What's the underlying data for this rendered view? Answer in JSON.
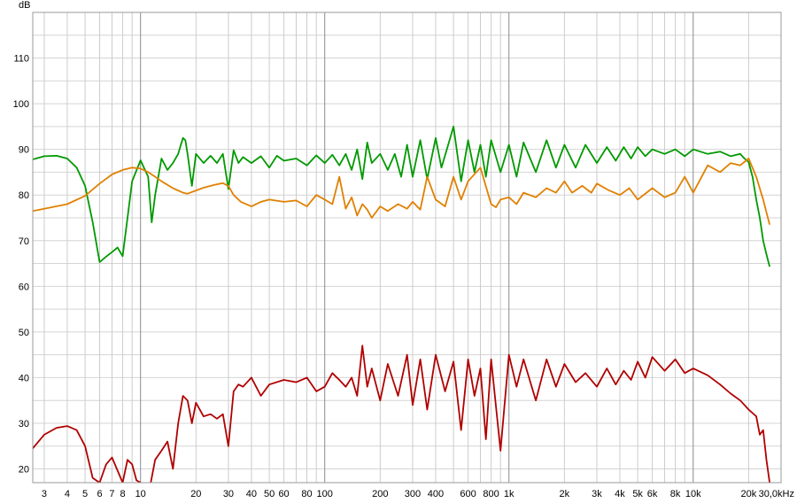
{
  "chart_data": {
    "type": "line",
    "title": "",
    "xlabel": "",
    "ylabel": "",
    "y_unit_label": "dB",
    "x_unit_label": "30,0kHz",
    "x_scale": "log",
    "xlim": [
      2.6,
      30000
    ],
    "ylim": [
      17,
      120
    ],
    "grid": true,
    "legend": "none",
    "y_ticks": [
      20,
      30,
      40,
      50,
      60,
      70,
      80,
      90,
      100,
      110
    ],
    "y_tick_labels": [
      "20",
      "30",
      "40",
      "50",
      "60",
      "70",
      "80",
      "90",
      "100",
      "110"
    ],
    "x_ticks": [
      3,
      4,
      5,
      6,
      7,
      8,
      10,
      20,
      30,
      40,
      50,
      60,
      80,
      100,
      200,
      300,
      400,
      600,
      800,
      1000,
      2000,
      3000,
      4000,
      5000,
      6000,
      8000,
      10000,
      20000
    ],
    "x_tick_labels": [
      "3",
      "4",
      "5",
      "6",
      "7",
      "8",
      "10",
      "20",
      "30",
      "40",
      "50",
      "60",
      "80",
      "100",
      "200",
      "300",
      "400",
      "600",
      "800",
      "1k",
      "2k",
      "3k",
      "4k",
      "5k",
      "6k",
      "8k",
      "10k",
      "20k"
    ],
    "series": [
      {
        "color": "#009900",
        "x": [
          2.6,
          3,
          3.5,
          4,
          4.5,
          5,
          5.5,
          6,
          6.5,
          7,
          7.5,
          8,
          8.5,
          9,
          10,
          11,
          11.5,
          12,
          13,
          14,
          15,
          16,
          17,
          17.5,
          18,
          19,
          20,
          22,
          24,
          26,
          28,
          30,
          32,
          34,
          36,
          40,
          45,
          50,
          55,
          60,
          70,
          80,
          90,
          100,
          110,
          120,
          130,
          140,
          150,
          160,
          170,
          180,
          200,
          220,
          240,
          260,
          280,
          300,
          330,
          360,
          400,
          430,
          460,
          500,
          550,
          600,
          650,
          700,
          750,
          800,
          900,
          1000,
          1100,
          1200,
          1400,
          1600,
          1800,
          2000,
          2300,
          2600,
          3000,
          3400,
          3800,
          4200,
          4600,
          5000,
          5500,
          6000,
          7000,
          8000,
          9000,
          10000,
          12000,
          14000,
          16000,
          18000,
          19000,
          20000,
          21000,
          22000,
          23000,
          24000,
          25000,
          26000
        ],
        "values": [
          87.8,
          88.5,
          88.6,
          88,
          86,
          82,
          74,
          65.3,
          66.5,
          67.5,
          68.5,
          66.6,
          75,
          83,
          87.6,
          84,
          74,
          80,
          88,
          85.5,
          87,
          89,
          92.5,
          92,
          89,
          82,
          89,
          87,
          88.6,
          87,
          89,
          81.3,
          89.8,
          87,
          88.3,
          87,
          88.5,
          86,
          88.6,
          87.5,
          88,
          86.5,
          88.7,
          87,
          88.8,
          86.5,
          89,
          85.5,
          90,
          83.5,
          91.5,
          87,
          89,
          85.5,
          89,
          84,
          91,
          84,
          92,
          83.5,
          92.5,
          86,
          90,
          95,
          83,
          92,
          85,
          91,
          84,
          92,
          85,
          91,
          84,
          91.5,
          85,
          92,
          86,
          91,
          86,
          91,
          87,
          90.5,
          87.5,
          90.5,
          88,
          90.5,
          88.5,
          90,
          89,
          90,
          88.5,
          90,
          89,
          89.5,
          88.5,
          89,
          88,
          87.2,
          84,
          79,
          75,
          70,
          67,
          64.3
        ]
      },
      {
        "color": "#e08000",
        "x": [
          2.6,
          3,
          4,
          5,
          6,
          7,
          8,
          9,
          10,
          11,
          12,
          13,
          15,
          17,
          18,
          20,
          22,
          25,
          28,
          30,
          32,
          35,
          40,
          45,
          50,
          60,
          70,
          80,
          90,
          100,
          110,
          120,
          130,
          140,
          150,
          160,
          170,
          180,
          200,
          220,
          250,
          280,
          300,
          330,
          360,
          400,
          450,
          500,
          550,
          600,
          700,
          800,
          850,
          900,
          1000,
          1100,
          1200,
          1400,
          1600,
          1800,
          2000,
          2200,
          2500,
          2800,
          3000,
          3500,
          4000,
          4500,
          5000,
          6000,
          7000,
          8000,
          9000,
          10000,
          12000,
          14000,
          16000,
          18000,
          20000,
          22000,
          24000,
          26000
        ],
        "values": [
          76.5,
          77,
          78,
          79.8,
          82.5,
          84.5,
          85.5,
          86,
          85.8,
          85,
          84,
          83,
          81.5,
          80.5,
          80.3,
          81,
          81.6,
          82.2,
          82.6,
          82,
          80,
          78.5,
          77.5,
          78.5,
          79,
          78.5,
          78.8,
          77.5,
          80,
          79,
          78,
          84,
          77,
          79.5,
          75.5,
          78,
          76.8,
          75,
          77.5,
          76.5,
          78,
          77,
          78.5,
          76.8,
          84,
          79,
          77.5,
          84,
          79,
          83,
          86,
          78,
          77.3,
          79,
          79.5,
          78,
          80.5,
          79.5,
          81.5,
          80.5,
          83,
          80.5,
          82,
          80.5,
          82.5,
          81,
          80,
          81.5,
          79,
          81.5,
          79.5,
          80.5,
          84,
          80.5,
          86.5,
          85,
          87,
          86.5,
          88,
          84,
          79,
          73.5
        ]
      },
      {
        "color": "#b00000",
        "x": [
          2.6,
          3,
          3.5,
          4,
          4.5,
          5,
          5.5,
          6,
          6.5,
          7,
          8,
          8.5,
          9,
          9.5,
          10,
          11,
          12,
          13,
          14,
          15,
          16,
          17,
          18,
          19,
          20,
          22,
          24,
          26,
          28,
          30,
          32,
          34,
          36,
          40,
          45,
          50,
          60,
          70,
          80,
          90,
          100,
          110,
          120,
          130,
          140,
          150,
          160,
          170,
          180,
          200,
          220,
          250,
          280,
          300,
          330,
          360,
          400,
          450,
          500,
          550,
          600,
          650,
          700,
          750,
          800,
          900,
          1000,
          1100,
          1200,
          1400,
          1600,
          1800,
          2000,
          2300,
          2600,
          3000,
          3400,
          3800,
          4200,
          4600,
          5000,
          5500,
          6000,
          7000,
          8000,
          9000,
          10000,
          12000,
          14000,
          16000,
          18000,
          20000,
          22000,
          23000,
          24000,
          25000,
          26000
        ],
        "values": [
          24.5,
          27.5,
          29,
          29.4,
          28.5,
          25,
          18,
          17,
          21,
          22.5,
          17,
          22,
          21,
          17.5,
          17,
          14,
          22,
          24,
          26,
          20,
          30,
          36,
          35,
          30,
          34.5,
          31.5,
          32,
          31,
          32,
          25,
          37,
          38.5,
          38,
          40,
          36,
          38.5,
          39.5,
          39,
          40,
          37,
          38,
          41,
          39.5,
          38,
          40,
          36,
          47,
          38,
          42,
          35,
          43,
          36,
          45,
          34,
          44,
          33,
          45,
          37,
          43.5,
          28.5,
          44,
          36,
          42,
          26.5,
          44,
          24,
          45,
          38,
          44,
          35,
          44,
          38,
          43,
          39,
          41,
          38,
          42,
          38.5,
          41.5,
          39.5,
          43.5,
          40,
          44.5,
          41.5,
          44,
          41,
          42,
          40.5,
          38.5,
          36.5,
          35,
          33,
          31.5,
          27.5,
          28.5,
          22,
          17
        ]
      }
    ]
  }
}
